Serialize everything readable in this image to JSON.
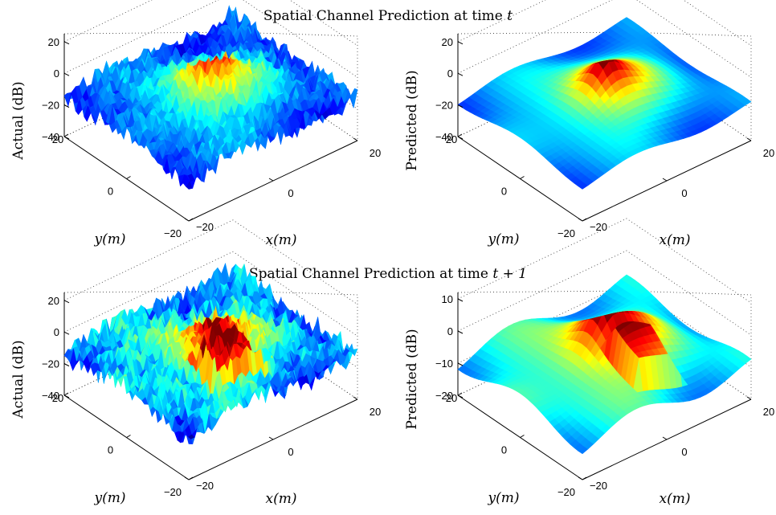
{
  "figure": {
    "row_titles": [
      {
        "text": "Spatial Channel Prediction at time",
        "math": "t"
      },
      {
        "text": "Spatial Channel Prediction at time",
        "math": "t + 1"
      }
    ]
  },
  "chart_data": [
    {
      "type": "surface",
      "row": "t",
      "panel": "actual",
      "zlabel": "Actual (dB)",
      "xlabel": "x(m)",
      "ylabel": "y(m)",
      "x_ticks": [
        "−20",
        "0",
        "20"
      ],
      "y_ticks": [
        "20",
        "0",
        "−20"
      ],
      "z_ticks": [
        "20",
        "0",
        "−20",
        "−40"
      ],
      "z_tick_values": [
        20,
        0,
        -20,
        -40
      ],
      "xlim": [
        -20,
        20
      ],
      "ylim": [
        -20,
        20
      ],
      "zlim": [
        -40,
        25
      ],
      "surface": {
        "noise_db": 6,
        "peak_db": 22,
        "mean_db": -15
      },
      "grid": true,
      "colormap": "jet"
    },
    {
      "type": "surface",
      "row": "t",
      "panel": "predicted",
      "zlabel": "Predicted (dB)",
      "xlabel": "x(m)",
      "ylabel": "y(m)",
      "x_ticks": [
        "−20",
        "0",
        "20"
      ],
      "y_ticks": [
        "20",
        "0",
        "−20"
      ],
      "z_ticks": [
        "20",
        "0",
        "−20",
        "−40"
      ],
      "z_tick_values": [
        20,
        0,
        -20,
        -40
      ],
      "xlim": [
        -20,
        20
      ],
      "ylim": [
        -20,
        20
      ],
      "zlim": [
        -40,
        25
      ],
      "surface": {
        "noise_db": 0,
        "peak_db": 10,
        "mean_db": -18
      },
      "grid": true,
      "colormap": "jet"
    },
    {
      "type": "surface",
      "row": "t+1",
      "panel": "actual",
      "zlabel": "Actual (dB)",
      "xlabel": "x(m)",
      "ylabel": "y(m)",
      "x_ticks": [
        "−20",
        "0",
        "20"
      ],
      "y_ticks": [
        "20",
        "0",
        "−20"
      ],
      "z_ticks": [
        "20",
        "0",
        "−20",
        "−40"
      ],
      "z_tick_values": [
        20,
        0,
        -20,
        -40
      ],
      "xlim": [
        -20,
        20
      ],
      "ylim": [
        -20,
        20
      ],
      "zlim": [
        -40,
        25
      ],
      "surface": {
        "noise_db": 7,
        "peak_db": 12,
        "mean_db": -12
      },
      "grid": true,
      "colormap": "jet"
    },
    {
      "type": "surface",
      "row": "t+1",
      "panel": "predicted",
      "zlabel": "Predicted (dB)",
      "xlabel": "x(m)",
      "ylabel": "y(m)",
      "x_ticks": [
        "−20",
        "0",
        "20"
      ],
      "y_ticks": [
        "20",
        "0",
        "−20"
      ],
      "z_ticks": [
        "10",
        "0",
        "−10",
        "−20"
      ],
      "z_tick_values": [
        10,
        0,
        -10,
        -20
      ],
      "xlim": [
        -20,
        20
      ],
      "ylim": [
        -20,
        20
      ],
      "zlim": [
        -20,
        12
      ],
      "surface": {
        "noise_db": 0,
        "peak_db": 8,
        "mean_db": -10
      },
      "grid": true,
      "colormap": "jet"
    }
  ]
}
